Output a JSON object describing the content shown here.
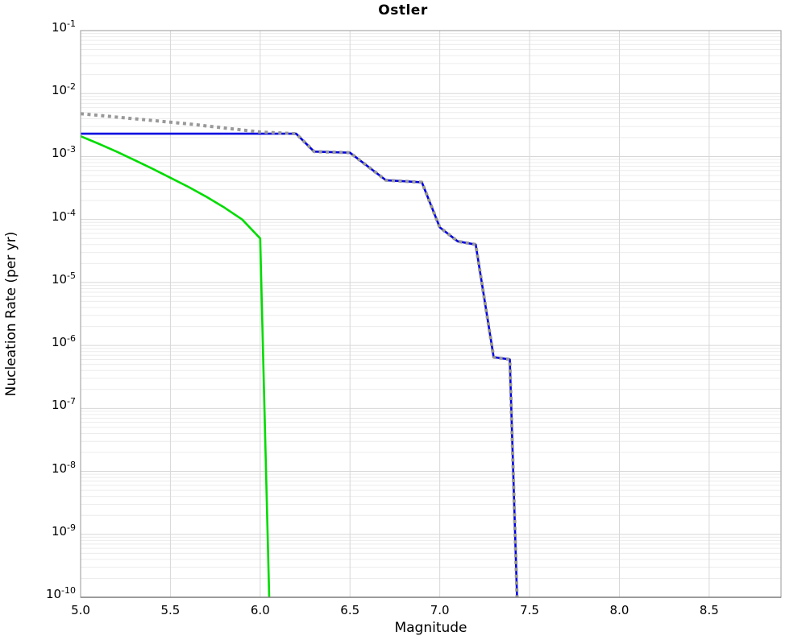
{
  "chart_data": {
    "type": "line",
    "title": "Ostler",
    "xlabel": "Magnitude",
    "ylabel": "Nucleation Rate (per yr)",
    "xlim": [
      5.0,
      8.9
    ],
    "ylim_log10": [
      -10,
      -1
    ],
    "x_axis_scale": "linear",
    "y_axis_scale": "log",
    "grid": true,
    "legend": "none",
    "x_ticks": [
      "5.0",
      "5.5",
      "6.0",
      "6.5",
      "7.0",
      "7.5",
      "8.0",
      "8.5"
    ],
    "x_tick_values": [
      5.0,
      5.5,
      6.0,
      6.5,
      7.0,
      7.5,
      8.0,
      8.5
    ],
    "y_tick_base": "10",
    "y_tick_exponents": [
      -1,
      -2,
      -3,
      -4,
      -5,
      -6,
      -7,
      -8,
      -9,
      -10
    ],
    "colors": {
      "major_grid": "#d7d7d7",
      "minor_grid": "#ececec",
      "frame": "#a9a9a9",
      "bottom_spine": "#808080"
    },
    "series": [
      {
        "name": "blue-solid",
        "color": "#0000e0",
        "style": "solid",
        "width": 2.6,
        "points": [
          [
            5.0,
            0.0023
          ],
          [
            6.2,
            0.0023
          ],
          [
            6.3,
            0.0012
          ],
          [
            6.5,
            0.00115
          ],
          [
            6.7,
            0.00042
          ],
          [
            6.9,
            0.00039
          ],
          [
            7.0,
            7.5e-05
          ],
          [
            7.1,
            4.5e-05
          ],
          [
            7.2,
            4e-05
          ],
          [
            7.3,
            6.5e-07
          ],
          [
            7.39,
            6e-07
          ],
          [
            7.43,
            1e-10
          ]
        ]
      },
      {
        "name": "green-solid",
        "color": "#00dc00",
        "style": "solid",
        "width": 2.6,
        "points": [
          [
            5.0,
            0.0021
          ],
          [
            5.1,
            0.0016
          ],
          [
            5.2,
            0.0012
          ],
          [
            5.3,
            0.00088
          ],
          [
            5.4,
            0.00064
          ],
          [
            5.5,
            0.00046
          ],
          [
            5.6,
            0.00033
          ],
          [
            5.7,
            0.00023
          ],
          [
            5.8,
            0.000155
          ],
          [
            5.9,
            0.0001
          ],
          [
            6.0,
            5e-05
          ],
          [
            6.05,
            1e-10
          ]
        ]
      },
      {
        "name": "gray-dotted",
        "color": "#999999",
        "style": "dotted",
        "width": 4,
        "points": [
          [
            5.0,
            0.0048
          ],
          [
            5.6,
            0.0033
          ],
          [
            6.0,
            0.00245
          ],
          [
            6.2,
            0.0023
          ],
          [
            6.3,
            0.0012
          ],
          [
            6.5,
            0.00115
          ],
          [
            6.7,
            0.00042
          ],
          [
            6.9,
            0.00039
          ],
          [
            7.0,
            7.5e-05
          ],
          [
            7.1,
            4.5e-05
          ],
          [
            7.2,
            4e-05
          ],
          [
            7.3,
            6.5e-07
          ],
          [
            7.39,
            6e-07
          ],
          [
            7.43,
            1e-10
          ]
        ]
      }
    ]
  }
}
